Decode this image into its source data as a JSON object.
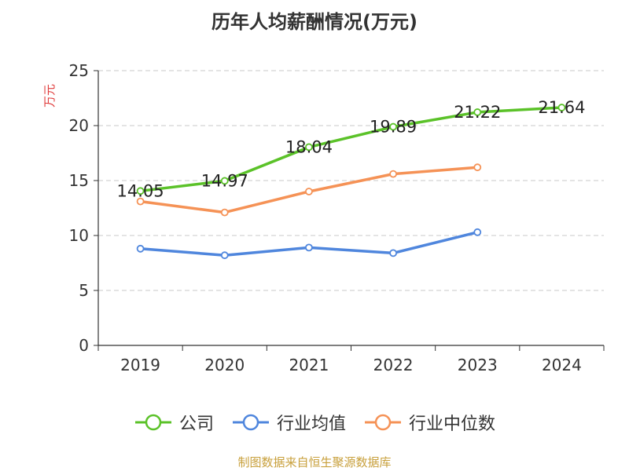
{
  "chart_data": {
    "type": "line",
    "title": "历年人均薪酬情况(万元)",
    "ylabel": "万元",
    "xlabel": "",
    "categories": [
      "2019",
      "2020",
      "2021",
      "2022",
      "2023",
      "2024"
    ],
    "ylim": [
      0,
      25
    ],
    "yticks": [
      0,
      5,
      10,
      15,
      20,
      25
    ],
    "grid": true,
    "legend_position": "bottom",
    "series": [
      {
        "name": "公司",
        "color": "#5bc229",
        "values": [
          14.05,
          14.97,
          18.04,
          19.89,
          21.22,
          21.64
        ],
        "labels": [
          "14.05",
          "14.97",
          "18.04",
          "19.89",
          "21.22",
          "21.64"
        ]
      },
      {
        "name": "行业均值",
        "color": "#4f86dd",
        "values": [
          8.8,
          8.2,
          8.9,
          8.4,
          10.3,
          null
        ]
      },
      {
        "name": "行业中位数",
        "color": "#f59256",
        "values": [
          13.1,
          12.1,
          14.0,
          15.6,
          16.2,
          null
        ]
      }
    ]
  },
  "source_text": "制图数据来自恒生聚源数据库"
}
